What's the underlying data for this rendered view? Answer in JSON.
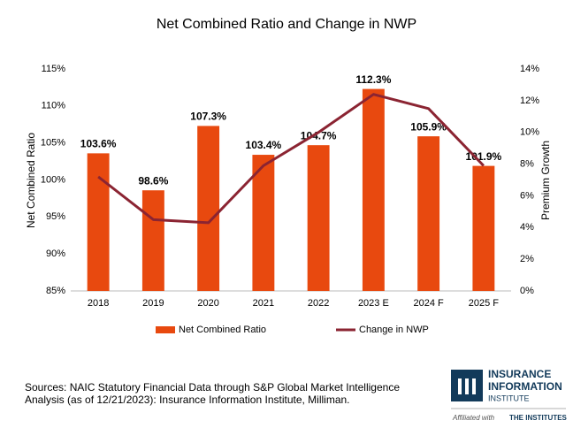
{
  "chart_data": {
    "type": "combo",
    "title": "Net Combined Ratio and Change in NWP",
    "categories": [
      "2018",
      "2019",
      "2020",
      "2021",
      "2022",
      "2023 E",
      "2024 F",
      "2025 F"
    ],
    "series": [
      {
        "name": "Net Combined Ratio",
        "type": "bar",
        "color": "#e8490f",
        "values": [
          103.6,
          98.6,
          107.3,
          103.4,
          104.7,
          112.3,
          105.9,
          101.9
        ],
        "value_labels": [
          "103.6%",
          "98.6%",
          "107.3%",
          "103.4%",
          "104.7%",
          "112.3%",
          "105.9%",
          "101.9%"
        ]
      },
      {
        "name": "Change in NWP",
        "type": "line",
        "axis": "y2",
        "color": "#8b2432",
        "values": [
          7.2,
          4.5,
          4.3,
          7.9,
          10.0,
          12.4,
          11.5,
          7.9
        ]
      }
    ],
    "ylabel": "Net Combined Ratio",
    "y2label": "Premium Growth",
    "ylim": [
      85,
      115
    ],
    "yticks": [
      {
        "value": 85,
        "label": "85%"
      },
      {
        "value": 90,
        "label": "90%"
      },
      {
        "value": 95,
        "label": "95%"
      },
      {
        "value": 100,
        "label": "100%"
      },
      {
        "value": 105,
        "label": "105%"
      },
      {
        "value": 110,
        "label": "110%"
      },
      {
        "value": 115,
        "label": "115%"
      }
    ],
    "y2lim": [
      0,
      14
    ],
    "y2ticks": [
      {
        "value": 0,
        "label": "0%"
      },
      {
        "value": 2,
        "label": "2%"
      },
      {
        "value": 4,
        "label": "4%"
      },
      {
        "value": 6,
        "label": "6%"
      },
      {
        "value": 8,
        "label": "8%"
      },
      {
        "value": 10,
        "label": "10%"
      },
      {
        "value": 12,
        "label": "12%"
      },
      {
        "value": 14,
        "label": "14%"
      }
    ],
    "grid": false,
    "legend": "bottom",
    "source": [
      "Sources: NAIC Statutory Financial Data through S&P Global Market Intelligence",
      "Analysis (as of 12/21/2023): Insurance Information Institute, Milliman."
    ]
  },
  "logo": {
    "lines": [
      "INSURANCE",
      "INFORMATION",
      "INSTITUTE"
    ],
    "affiliation": "Affiliated with",
    "partner": "THE INSTITUTES"
  }
}
